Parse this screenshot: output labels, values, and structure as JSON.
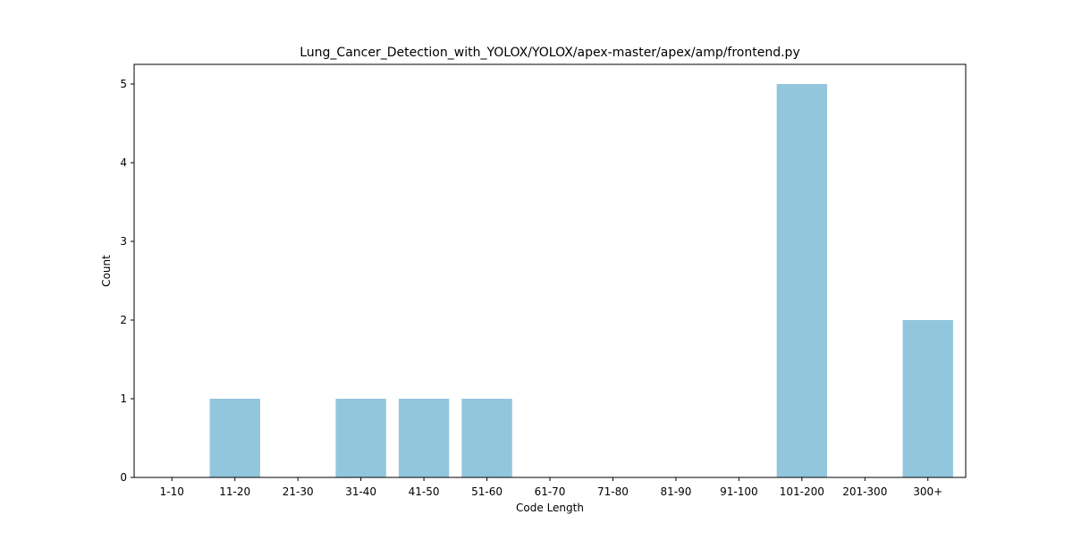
{
  "chart_data": {
    "type": "bar",
    "title": "Lung_Cancer_Detection_with_YOLOX/YOLOX/apex-master/apex/amp/frontend.py",
    "xlabel": "Code Length",
    "ylabel": "Count",
    "categories": [
      "1-10",
      "11-20",
      "21-30",
      "31-40",
      "41-50",
      "51-60",
      "61-70",
      "71-80",
      "81-90",
      "91-100",
      "101-200",
      "201-300",
      "300+"
    ],
    "values": [
      0,
      1,
      0,
      1,
      1,
      1,
      0,
      0,
      0,
      0,
      5,
      0,
      2
    ],
    "ylim": [
      0,
      5.25
    ],
    "yticks": [
      0,
      1,
      2,
      3,
      4,
      5
    ],
    "bar_color": "#92c6dd",
    "grid": false,
    "legend": "none"
  }
}
